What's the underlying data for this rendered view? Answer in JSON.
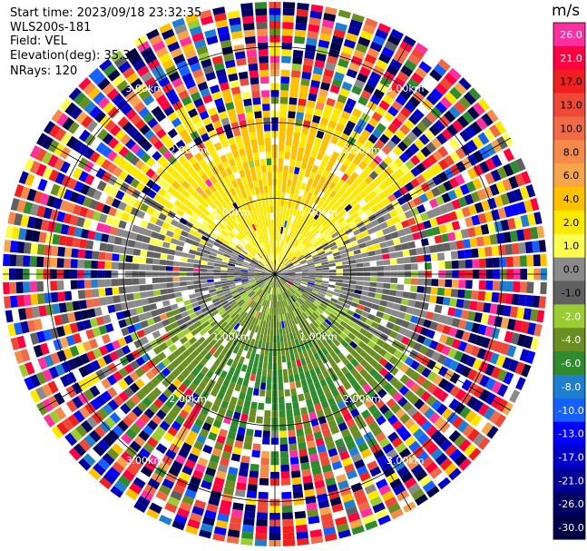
{
  "header": {
    "start_time": "Start time: 2023/09/18 23:32:35",
    "instrument": "WLS200s-181",
    "field": "Field: VEL",
    "elevation": "Elevation(deg): 35.30",
    "nrays": "NRays: 120"
  },
  "colorbar": {
    "unit": "m/s",
    "levels": [
      {
        "label": "26.0",
        "color": "#ff2fa0"
      },
      {
        "label": "21.0",
        "color": "#ff0040"
      },
      {
        "label": "17.0",
        "color": "#f02020"
      },
      {
        "label": "13.0",
        "color": "#f04838"
      },
      {
        "label": "10.0",
        "color": "#f06a48"
      },
      {
        "label": "8.0",
        "color": "#f58a4a"
      },
      {
        "label": "6.0",
        "color": "#f7a54a"
      },
      {
        "label": "4.0",
        "color": "#ffc000"
      },
      {
        "label": "2.0",
        "color": "#ffe800"
      },
      {
        "label": "1.0",
        "color": "#ffff50"
      },
      {
        "label": "0.0",
        "color": "#8a8a8a"
      },
      {
        "label": "-1.0",
        "color": "#606060"
      },
      {
        "label": "-2.0",
        "color": "#9acd32"
      },
      {
        "label": "-4.0",
        "color": "#6b8e23"
      },
      {
        "label": "-6.0",
        "color": "#2e8b2e"
      },
      {
        "label": "-8.0",
        "color": "#1e7fd0"
      },
      {
        "label": "-10.0",
        "color": "#1560ff"
      },
      {
        "label": "-13.0",
        "color": "#0000ff"
      },
      {
        "label": "-17.0",
        "color": "#0000c8"
      },
      {
        "label": "-21.0",
        "color": "#000096"
      },
      {
        "label": "-26.0",
        "color": "#000064"
      },
      {
        "label": "-30.0",
        "color": "#000046"
      }
    ]
  },
  "chart_data": {
    "type": "heatmap",
    "projection": "polar (PPI)",
    "field": "VEL",
    "units": "m/s",
    "rays": 120,
    "elevation_deg": 35.3,
    "range_rings_km": [
      1.0,
      2.0,
      3.0
    ],
    "range_ring_labels": [
      "1.00km",
      "2.00km",
      "3.00km"
    ],
    "max_range_km": 3.6,
    "spoke_angles_deg": [
      0,
      30,
      60,
      90,
      120,
      150,
      180,
      210,
      240,
      270,
      300,
      330
    ],
    "velocity_pattern": {
      "north_sector": "positive 2–6 m/s (yellow/orange), near range",
      "south_sector": "negative -2 to -8 m/s (green), near range",
      "east_west": "near 0 m/s (grey)",
      "outer_range": "noise beyond ~2.5 km"
    }
  }
}
